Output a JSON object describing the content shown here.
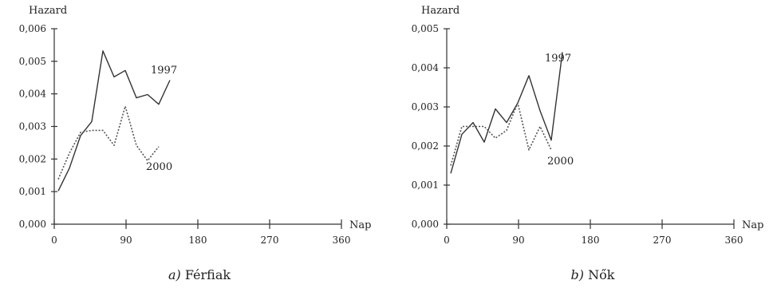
{
  "chart_data": [
    {
      "type": "line",
      "caption_letter": "a)",
      "caption_text": "Férfiak",
      "ylabel": "Hazard",
      "xlabel": "Nap",
      "xlim": [
        0,
        360
      ],
      "ylim": [
        0,
        0.006
      ],
      "x_ticks": [
        0,
        90,
        180,
        270,
        360
      ],
      "x_tick_labels": [
        "0",
        "90",
        "180",
        "270",
        "360"
      ],
      "y_ticks": [
        0,
        0.001,
        0.002,
        0.003,
        0.004,
        0.005,
        0.006
      ],
      "y_tick_labels": [
        "0,000",
        "0,001",
        "0,002",
        "0,003",
        "0,004",
        "0,005",
        "0,006"
      ],
      "grid": false,
      "series": [
        {
          "name": "1997",
          "style": "solid",
          "color": "#333333",
          "x": [
            5,
            19,
            33,
            47,
            61,
            75,
            89,
            103,
            117,
            131,
            145
          ],
          "y": [
            0.00102,
            0.00172,
            0.00272,
            0.00315,
            0.00532,
            0.00452,
            0.00472,
            0.00388,
            0.00398,
            0.00368,
            0.00442
          ]
        },
        {
          "name": "2000",
          "style": "dotted",
          "color": "#555555",
          "x": [
            5,
            19,
            33,
            47,
            61,
            75,
            89,
            103,
            117,
            131
          ],
          "y": [
            0.00138,
            0.00218,
            0.00282,
            0.00288,
            0.00288,
            0.00242,
            0.00362,
            0.00242,
            0.00195,
            0.00238
          ]
        }
      ]
    },
    {
      "type": "line",
      "caption_letter": "b)",
      "caption_text": "Nők",
      "ylabel": "Hazard",
      "xlabel": "Nap",
      "xlim": [
        0,
        360
      ],
      "ylim": [
        0,
        0.005
      ],
      "x_ticks": [
        0,
        90,
        180,
        270,
        360
      ],
      "x_tick_labels": [
        "0",
        "90",
        "180",
        "270",
        "360"
      ],
      "y_ticks": [
        0,
        0.001,
        0.002,
        0.003,
        0.004,
        0.005
      ],
      "y_tick_labels": [
        "0,000",
        "0,001",
        "0,002",
        "0,003",
        "0,004",
        "0,005"
      ],
      "grid": false,
      "series": [
        {
          "name": "1997",
          "style": "solid",
          "color": "#333333",
          "x": [
            5,
            19,
            33,
            47,
            61,
            75,
            89,
            103,
            117,
            131,
            145
          ],
          "y": [
            0.0013,
            0.0023,
            0.0026,
            0.0021,
            0.00295,
            0.0026,
            0.0031,
            0.0038,
            0.0029,
            0.00215,
            0.0044
          ]
        },
        {
          "name": "2000",
          "style": "dotted",
          "color": "#555555",
          "x": [
            5,
            19,
            33,
            47,
            61,
            75,
            89,
            103,
            117,
            131
          ],
          "y": [
            0.0015,
            0.0025,
            0.0025,
            0.0025,
            0.0022,
            0.0024,
            0.0031,
            0.0019,
            0.0025,
            0.0019
          ]
        }
      ]
    }
  ]
}
